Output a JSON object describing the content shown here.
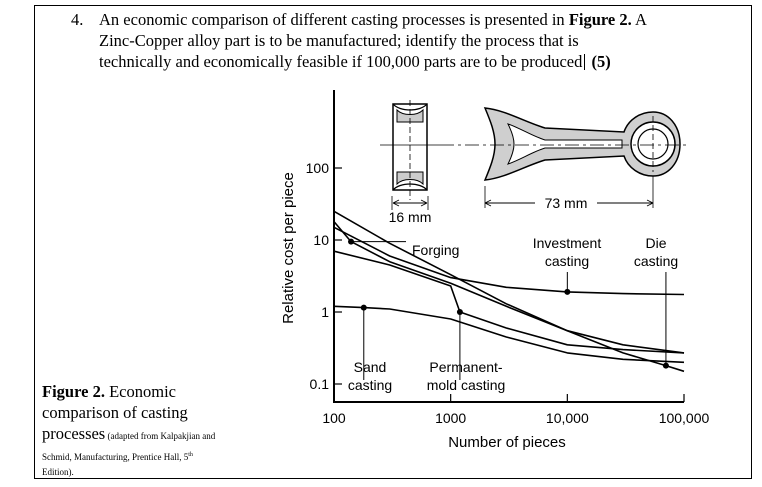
{
  "question": {
    "number": "4.",
    "line1_pre": "An economic comparison of different casting processes is presented in ",
    "line1_bold": "Figure 2.",
    "line1_post": " A",
    "line2": "Zinc-Copper alloy part is to be manufactured; identify the process that is",
    "line3_pre": "technically and economically feasible if 100,000 parts are to be produced",
    "line3_marks": "(5)"
  },
  "caption": {
    "label": "Figure 2.",
    "text1": " Economic",
    "text2": "comparison of casting",
    "text3": "processes",
    "source_small": " (adapted from Kalpakjian and",
    "source_line2_pre": "Schmid, Manufacturing, Prentice Hall, 5",
    "source_sup": "th",
    "source_line3": "Edition)."
  },
  "chart_data": {
    "type": "line",
    "xlabel": "Number of pieces",
    "ylabel": "Relative cost per piece",
    "x_scale": "log",
    "y_scale": "log",
    "xlim": [
      100,
      100000
    ],
    "ylim": [
      0.1,
      100
    ],
    "x_ticks": [
      {
        "value": 100,
        "label": "100"
      },
      {
        "value": 1000,
        "label": "1000"
      },
      {
        "value": 10000,
        "label": "10,000"
      },
      {
        "value": 100000,
        "label": "100,000"
      }
    ],
    "y_ticks": [
      {
        "value": 100,
        "label": "100"
      },
      {
        "value": 10,
        "label": "10"
      },
      {
        "value": 1,
        "label": "1"
      },
      {
        "value": 0.1,
        "label": "0.1"
      }
    ],
    "series": [
      {
        "name": "Forging",
        "label_lines": [
          "Forging"
        ],
        "anchor_x": 140,
        "x": [
          100,
          140,
          300,
          1000,
          3000,
          10000,
          30000,
          100000
        ],
        "y": [
          18,
          9.5,
          5.0,
          2.5,
          1.2,
          0.55,
          0.35,
          0.27
        ]
      },
      {
        "name": "Investment casting",
        "label_lines": [
          "Investment",
          "casting"
        ],
        "anchor_x": 10000,
        "x": [
          100,
          300,
          1000,
          3000,
          10000,
          30000,
          100000
        ],
        "y": [
          15,
          6.0,
          3.0,
          2.2,
          1.9,
          1.8,
          1.75
        ]
      },
      {
        "name": "Die casting",
        "label_lines": [
          "Die",
          "casting"
        ],
        "anchor_x": 70000,
        "x": [
          100,
          300,
          1000,
          3000,
          10000,
          30000,
          70000,
          100000
        ],
        "y": [
          25,
          9,
          3.3,
          1.3,
          0.55,
          0.27,
          0.18,
          0.15
        ]
      },
      {
        "name": "Sand casting",
        "label_lines": [
          "Sand",
          "casting"
        ],
        "anchor_x": 180,
        "x": [
          100,
          180,
          300,
          1000,
          3000,
          10000,
          30000,
          100000
        ],
        "y": [
          1.2,
          1.15,
          1.1,
          0.8,
          0.45,
          0.27,
          0.22,
          0.2
        ]
      },
      {
        "name": "Permanent-mold casting",
        "label_lines": [
          "Permanent-",
          "mold casting"
        ],
        "anchor_x": 1200,
        "x": [
          100,
          300,
          1000,
          1200,
          3000,
          10000,
          30000,
          100000
        ],
        "y": [
          7,
          4.5,
          2.3,
          1.0,
          0.6,
          0.35,
          0.3,
          0.27
        ]
      }
    ]
  },
  "drawing": {
    "dimension_small": "16 mm",
    "dimension_large": "73 mm"
  }
}
